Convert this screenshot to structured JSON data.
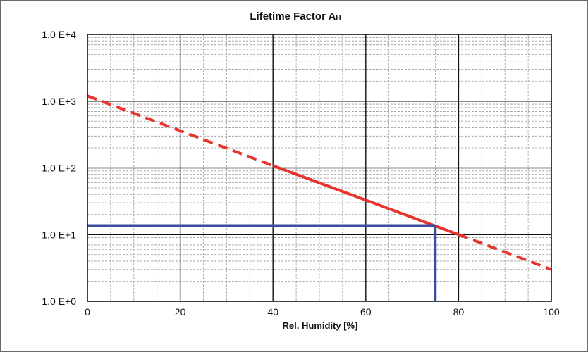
{
  "chart_data": {
    "type": "line",
    "title": "Lifetime Factor A",
    "title_subscript": "H",
    "xlabel": "Rel. Humidity [%]",
    "ylabel": "",
    "xlim": [
      0,
      100
    ],
    "ylim": [
      1,
      10000
    ],
    "y_scale": "log",
    "x_ticks": [
      0,
      20,
      40,
      60,
      80,
      100
    ],
    "x_tick_labels": [
      "0",
      "20",
      "40",
      "60",
      "80",
      "100"
    ],
    "y_ticks": [
      1,
      10,
      100,
      1000,
      10000
    ],
    "y_tick_labels": [
      "1,0 E+0",
      "1,0 E+1",
      "1,0 E+2",
      "1,0 E+3",
      "1,0 E+4"
    ],
    "grid": true,
    "series": [
      {
        "style": "dashed",
        "color": "#e8342c",
        "x": [
          0,
          40
        ],
        "y": [
          1200,
          108
        ]
      },
      {
        "style": "solid",
        "color": "#e8342c",
        "x": [
          40,
          80
        ],
        "y": [
          108,
          10
        ]
      },
      {
        "style": "dashed",
        "color": "#e8342c",
        "x": [
          80,
          100
        ],
        "y": [
          10,
          3
        ]
      }
    ],
    "reference_lines": [
      {
        "color": "#3a4fa0",
        "x": [
          0,
          75
        ],
        "y": [
          13.7,
          13.7
        ]
      },
      {
        "color": "#3a4fa0",
        "x": [
          75,
          75
        ],
        "y": [
          13.7,
          1
        ]
      }
    ]
  }
}
